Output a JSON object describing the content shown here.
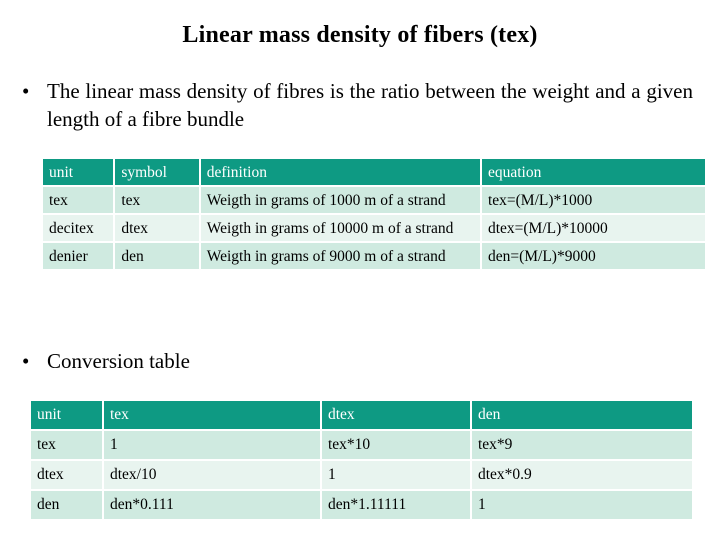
{
  "title": "Linear mass density of fibers (tex)",
  "bullets": {
    "intro": "The linear mass density of fibres is the ratio between the weight and a given length of a fibre bundle",
    "conversion": "Conversion table",
    "marker": "•"
  },
  "units_table": {
    "headers": [
      "unit",
      "symbol",
      "definition",
      "equation"
    ],
    "rows": [
      [
        "tex",
        "tex",
        "Weigth in grams of 1000 m of a strand",
        "tex=(M/L)*1000"
      ],
      [
        "decitex",
        "dtex",
        "Weigth in grams of 10000 m of a strand",
        "dtex=(M/L)*10000"
      ],
      [
        "denier",
        "den",
        "Weigth in grams of 9000 m of a strand",
        "den=(M/L)*9000"
      ]
    ]
  },
  "conversion_table": {
    "headers": [
      "unit",
      "tex",
      "dtex",
      "den"
    ],
    "rows": [
      [
        "tex",
        "1",
        "tex*10",
        "tex*9"
      ],
      [
        "dtex",
        "dtex/10",
        "1",
        "dtex*0.9"
      ],
      [
        "den",
        "den*0.111",
        "den*1.11111",
        "1"
      ]
    ]
  },
  "colors": {
    "header_bg": "#0e9a83",
    "row_bg": "#cfeae0",
    "row_alt_bg": "#e8f4ef"
  }
}
